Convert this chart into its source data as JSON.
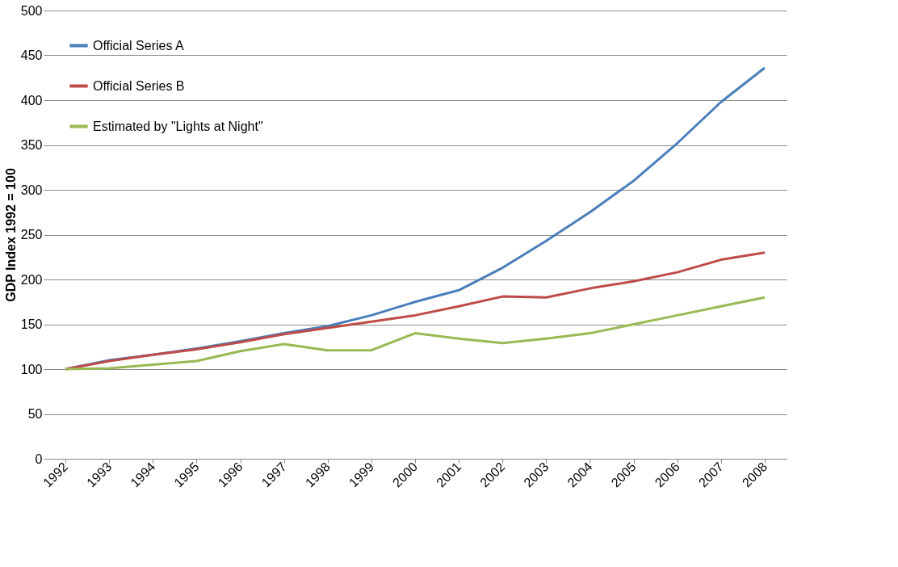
{
  "chart_data": {
    "type": "line",
    "ylabel": "GDP Index 1992 = 100",
    "categories": [
      "1992",
      "1993",
      "1994",
      "1995",
      "1996",
      "1997",
      "1998",
      "1999",
      "2000",
      "2001",
      "2002",
      "2003",
      "2004",
      "2005",
      "2006",
      "2007",
      "2008"
    ],
    "series": [
      {
        "name": "Official Series A",
        "color": "#4a7ebb",
        "values": [
          100,
          110,
          116,
          123,
          131,
          140,
          148,
          160,
          175,
          188,
          213,
          243,
          275,
          310,
          352,
          398,
          436
        ]
      },
      {
        "name": "Official Series B",
        "color": "#be4b48",
        "values": [
          100,
          109,
          116,
          122,
          130,
          139,
          146,
          153,
          160,
          170,
          181,
          180,
          190,
          198,
          208,
          222,
          230
        ]
      },
      {
        "name": "Estimated by \"Lights at Night\"",
        "color": "#98b954",
        "values": [
          100,
          101,
          105,
          109,
          120,
          128,
          121,
          121,
          140,
          134,
          129,
          134,
          140,
          150,
          160,
          170,
          180
        ]
      }
    ],
    "ylim": [
      0,
      500
    ],
    "yticks": [
      0,
      50,
      100,
      150,
      200,
      250,
      300,
      350,
      400,
      450,
      500
    ],
    "grid": "y",
    "legend": "top left",
    "marker": "none",
    "line_style": "solid"
  }
}
